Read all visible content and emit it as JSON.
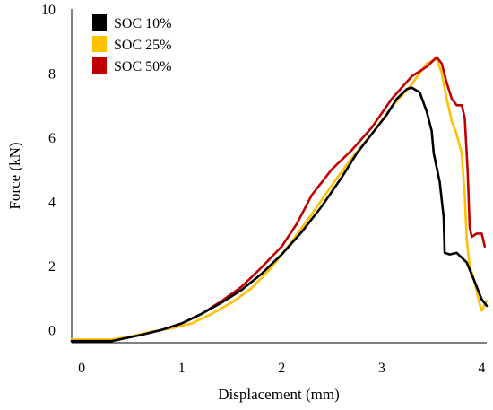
{
  "chart_data": {
    "type": "line",
    "title": "",
    "xlabel": "Displacement (mm)",
    "ylabel": "Force (kN)",
    "xlim": [
      -0.1,
      4.05
    ],
    "ylim": [
      -0.4,
      10
    ],
    "xticks": [
      0,
      1,
      2,
      3,
      4
    ],
    "yticks": [
      0,
      2,
      4,
      6,
      8,
      10
    ],
    "grid": false,
    "legend_position": "top-left",
    "series": [
      {
        "name": "SOC 10%",
        "color": "#000000",
        "points": [
          [
            -0.1,
            -0.35
          ],
          [
            0.1,
            -0.35
          ],
          [
            0.3,
            -0.35
          ],
          [
            0.45,
            -0.25
          ],
          [
            0.6,
            -0.15
          ],
          [
            0.8,
            0.0
          ],
          [
            1.0,
            0.2
          ],
          [
            1.2,
            0.5
          ],
          [
            1.4,
            0.85
          ],
          [
            1.6,
            1.25
          ],
          [
            1.8,
            1.75
          ],
          [
            2.0,
            2.35
          ],
          [
            2.2,
            3.05
          ],
          [
            2.4,
            3.85
          ],
          [
            2.6,
            4.75
          ],
          [
            2.75,
            5.5
          ],
          [
            2.9,
            6.1
          ],
          [
            3.05,
            6.7
          ],
          [
            3.15,
            7.2
          ],
          [
            3.25,
            7.5
          ],
          [
            3.3,
            7.55
          ],
          [
            3.38,
            7.4
          ],
          [
            3.45,
            6.8
          ],
          [
            3.5,
            6.2
          ],
          [
            3.52,
            5.5
          ],
          [
            3.58,
            4.6
          ],
          [
            3.62,
            3.5
          ],
          [
            3.63,
            2.4
          ],
          [
            3.68,
            2.35
          ],
          [
            3.75,
            2.4
          ],
          [
            3.85,
            2.1
          ],
          [
            3.93,
            1.5
          ],
          [
            4.0,
            0.95
          ],
          [
            4.05,
            0.75
          ]
        ]
      },
      {
        "name": "SOC 25%",
        "color": "#FFC000",
        "points": [
          [
            -0.1,
            -0.3
          ],
          [
            0.1,
            -0.3
          ],
          [
            0.3,
            -0.3
          ],
          [
            0.5,
            -0.2
          ],
          [
            0.7,
            -0.05
          ],
          [
            0.9,
            0.05
          ],
          [
            1.1,
            0.2
          ],
          [
            1.3,
            0.5
          ],
          [
            1.5,
            0.85
          ],
          [
            1.7,
            1.3
          ],
          [
            1.9,
            1.95
          ],
          [
            2.1,
            2.75
          ],
          [
            2.3,
            3.6
          ],
          [
            2.5,
            4.5
          ],
          [
            2.7,
            5.35
          ],
          [
            2.9,
            6.1
          ],
          [
            3.1,
            6.95
          ],
          [
            3.3,
            7.65
          ],
          [
            3.45,
            8.3
          ],
          [
            3.55,
            8.45
          ],
          [
            3.6,
            8.0
          ],
          [
            3.65,
            7.2
          ],
          [
            3.7,
            6.5
          ],
          [
            3.75,
            6.1
          ],
          [
            3.8,
            5.5
          ],
          [
            3.83,
            4.2
          ],
          [
            3.85,
            2.8
          ],
          [
            3.88,
            2.0
          ],
          [
            3.92,
            1.6
          ],
          [
            3.95,
            1.2
          ],
          [
            3.98,
            0.8
          ],
          [
            4.0,
            0.6
          ],
          [
            4.05,
            0.9
          ]
        ]
      },
      {
        "name": "SOC 50%",
        "color": "#C00000",
        "points": [
          [
            0.8,
            0.0
          ],
          [
            1.0,
            0.2
          ],
          [
            1.2,
            0.5
          ],
          [
            1.4,
            0.9
          ],
          [
            1.6,
            1.35
          ],
          [
            1.8,
            1.95
          ],
          [
            2.0,
            2.6
          ],
          [
            2.15,
            3.3
          ],
          [
            2.3,
            4.2
          ],
          [
            2.5,
            5.0
          ],
          [
            2.7,
            5.6
          ],
          [
            2.9,
            6.3
          ],
          [
            3.1,
            7.2
          ],
          [
            3.3,
            7.9
          ],
          [
            3.45,
            8.2
          ],
          [
            3.55,
            8.5
          ],
          [
            3.6,
            8.3
          ],
          [
            3.65,
            7.7
          ],
          [
            3.7,
            7.2
          ],
          [
            3.75,
            7.0
          ],
          [
            3.8,
            7.0
          ],
          [
            3.83,
            6.6
          ],
          [
            3.86,
            4.9
          ],
          [
            3.88,
            3.2
          ],
          [
            3.9,
            2.9
          ],
          [
            3.95,
            3.0
          ],
          [
            4.0,
            3.0
          ],
          [
            4.03,
            2.6
          ]
        ]
      }
    ]
  }
}
